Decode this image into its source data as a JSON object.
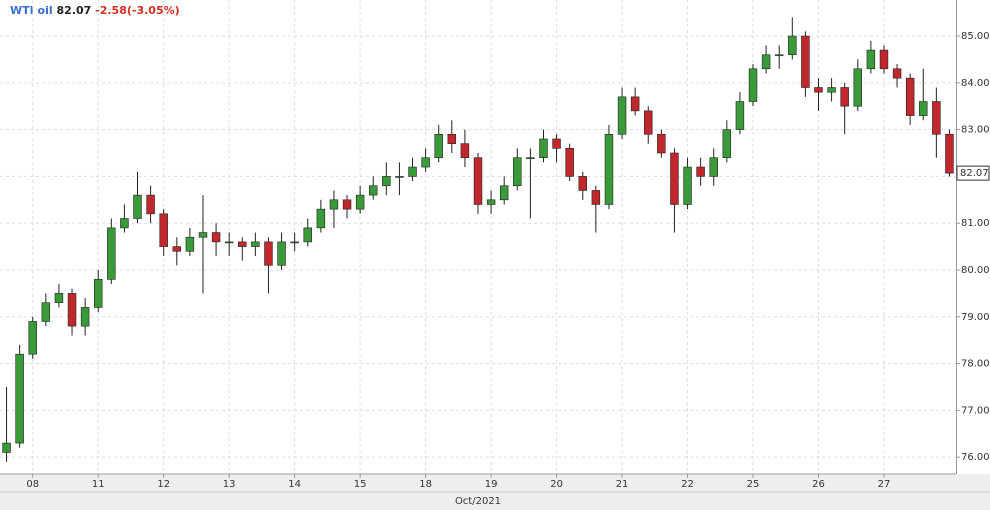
{
  "chart_data": {
    "type": "candlestick",
    "title": "WTI oil",
    "last_price": "82.07",
    "change": "-2.58(-3.05%)",
    "x_label": "Oct/2021",
    "x": [
      -0.4,
      -0.2,
      0,
      0.2,
      0.4,
      0.6,
      0.8,
      1,
      1.2,
      1.4,
      1.6,
      1.8,
      2,
      2.2,
      2.4,
      2.6,
      2.8,
      3,
      3.2,
      3.4,
      3.6,
      3.8,
      4,
      4.2,
      4.4,
      4.6,
      4.8,
      5,
      5.2,
      5.4,
      5.6,
      5.8,
      6,
      6.2,
      6.4,
      6.6,
      6.8,
      7,
      7.2,
      7.4,
      7.6,
      7.8,
      8,
      8.2,
      8.4,
      8.6,
      8.8,
      9,
      9.2,
      9.4,
      9.6,
      9.8,
      10,
      10.2,
      10.4,
      10.6,
      10.8,
      11,
      11.2,
      11.4,
      11.6,
      11.8,
      12,
      12.2,
      12.4,
      12.6,
      12.8,
      13,
      13.2,
      13.4,
      13.6,
      13.8,
      14
    ],
    "open": [
      76.1,
      76.3,
      78.2,
      78.9,
      79.3,
      79.5,
      78.8,
      79.2,
      79.8,
      80.9,
      81.1,
      81.6,
      81.2,
      80.5,
      80.4,
      80.7,
      80.8,
      80.6,
      80.6,
      80.5,
      80.6,
      80.1,
      80.6,
      80.6,
      80.9,
      81.3,
      81.5,
      81.3,
      81.6,
      81.8,
      82.0,
      82.0,
      82.2,
      82.4,
      82.9,
      82.7,
      82.4,
      81.4,
      81.5,
      81.8,
      82.4,
      82.4,
      82.8,
      82.6,
      82.0,
      81.7,
      81.4,
      82.9,
      83.7,
      83.4,
      82.9,
      82.5,
      81.4,
      82.2,
      82.0,
      82.4,
      83.0,
      83.6,
      84.3,
      84.6,
      84.6,
      85.0,
      83.9,
      83.8,
      83.9,
      83.5,
      84.3,
      84.7,
      84.3,
      84.1,
      83.3,
      83.6,
      82.9
    ],
    "high": [
      77.5,
      78.4,
      79.0,
      79.5,
      79.7,
      79.6,
      79.4,
      80.0,
      81.1,
      81.4,
      82.1,
      81.8,
      81.3,
      80.7,
      80.9,
      81.6,
      81.0,
      80.8,
      80.7,
      80.8,
      80.7,
      80.8,
      80.8,
      81.1,
      81.5,
      81.7,
      81.6,
      81.8,
      82.0,
      82.3,
      82.3,
      82.4,
      82.6,
      83.1,
      83.2,
      83.0,
      82.5,
      81.7,
      82.0,
      82.6,
      82.6,
      83.0,
      82.9,
      82.7,
      82.1,
      81.8,
      83.1,
      83.9,
      83.9,
      83.5,
      83.0,
      82.6,
      82.4,
      82.4,
      82.6,
      83.2,
      83.8,
      84.4,
      84.8,
      84.8,
      85.4,
      85.1,
      84.1,
      84.1,
      84.0,
      84.5,
      84.9,
      84.8,
      84.4,
      84.2,
      84.3,
      83.9,
      83.0
    ],
    "low": [
      75.9,
      76.2,
      78.1,
      78.8,
      79.2,
      78.6,
      78.6,
      79.1,
      79.7,
      80.8,
      81.0,
      81.0,
      80.3,
      80.1,
      80.3,
      79.5,
      80.3,
      80.3,
      80.2,
      80.3,
      79.5,
      80.0,
      80.4,
      80.5,
      80.8,
      80.9,
      81.1,
      81.2,
      81.5,
      81.6,
      81.6,
      81.9,
      82.1,
      82.3,
      82.5,
      82.2,
      81.2,
      81.2,
      81.4,
      81.7,
      81.1,
      82.3,
      82.3,
      81.9,
      81.5,
      80.8,
      81.3,
      82.8,
      83.3,
      82.7,
      82.4,
      80.8,
      81.3,
      81.8,
      81.8,
      82.3,
      82.9,
      83.5,
      84.2,
      84.3,
      84.5,
      83.7,
      83.4,
      83.6,
      82.9,
      83.4,
      84.2,
      84.2,
      83.9,
      83.1,
      83.2,
      82.4,
      82.0
    ],
    "close": [
      76.3,
      78.2,
      78.9,
      79.3,
      79.5,
      78.8,
      79.2,
      79.8,
      80.9,
      81.1,
      81.6,
      81.2,
      80.5,
      80.4,
      80.7,
      80.8,
      80.6,
      80.6,
      80.5,
      80.6,
      80.1,
      80.6,
      80.6,
      80.9,
      81.3,
      81.5,
      81.3,
      81.6,
      81.8,
      82.0,
      82.0,
      82.2,
      82.4,
      82.9,
      82.7,
      82.4,
      81.4,
      81.5,
      81.8,
      82.4,
      82.4,
      82.8,
      82.6,
      82.0,
      81.7,
      81.4,
      82.9,
      83.7,
      83.4,
      82.9,
      82.5,
      81.4,
      82.2,
      82.0,
      82.4,
      83.0,
      83.6,
      84.3,
      84.6,
      84.6,
      85.0,
      83.9,
      83.8,
      83.9,
      83.5,
      84.3,
      84.7,
      84.3,
      84.1,
      83.3,
      83.6,
      82.9,
      82.07
    ],
    "up_color": "#3a9a3a",
    "down_color": "#c0282d",
    "xlim": [
      -0.5,
      14.1
    ],
    "xticks": [
      {
        "value": 0,
        "label": "08"
      },
      {
        "value": 1,
        "label": "11"
      },
      {
        "value": 2,
        "label": "12"
      },
      {
        "value": 3,
        "label": "13"
      },
      {
        "value": 4,
        "label": "14"
      },
      {
        "value": 5,
        "label": "15"
      },
      {
        "value": 6,
        "label": "18"
      },
      {
        "value": 7,
        "label": "19"
      },
      {
        "value": 8,
        "label": "20"
      },
      {
        "value": 9,
        "label": "21"
      },
      {
        "value": 10,
        "label": "22"
      },
      {
        "value": 11,
        "label": "25"
      },
      {
        "value": 12,
        "label": "26"
      },
      {
        "value": 13,
        "label": "27"
      }
    ],
    "ylim": [
      75.64,
      85.77
    ],
    "yticks": [
      {
        "value": 76,
        "label": "76.00"
      },
      {
        "value": 77,
        "label": "77.00"
      },
      {
        "value": 78,
        "label": "78.00"
      },
      {
        "value": 79,
        "label": "79.00"
      },
      {
        "value": 80,
        "label": "80.00"
      },
      {
        "value": 81,
        "label": "81.00"
      },
      {
        "value": 82,
        "label": "82.00"
      },
      {
        "value": 83,
        "label": "83.00"
      },
      {
        "value": 84,
        "label": "84.00"
      },
      {
        "value": 85,
        "label": "85.00"
      }
    ],
    "grid": true
  }
}
